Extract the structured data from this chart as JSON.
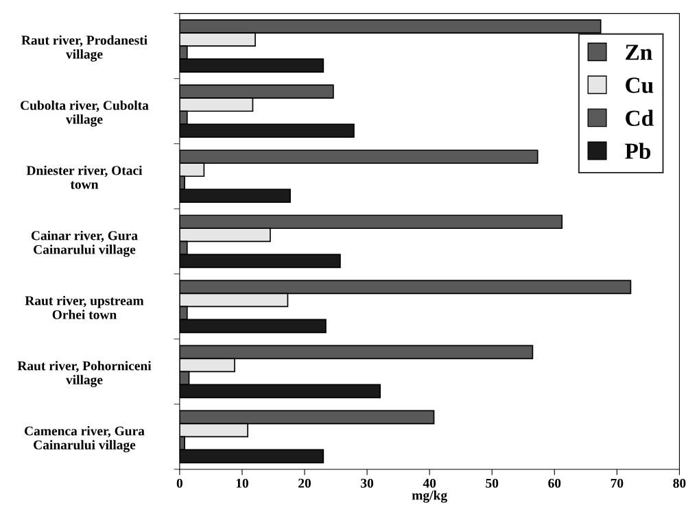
{
  "chart_data": {
    "type": "bar",
    "orientation": "horizontal",
    "xlabel": "mg/kg",
    "categories": [
      "Raut river, Prodanesti\nvillage",
      "Cubolta river, Cubolta\nvillage",
      "Dniester river, Otaci\ntown",
      "Cainar river, Gura\nCainarului village",
      "Raut river, upstream\nOrhei town",
      "Raut river, Pohorniceni\nvillage",
      "Camenca river, Gura\nCainarului village"
    ],
    "series": [
      {
        "name": "Zn",
        "color": "#595959",
        "values": [
          67.4,
          24.6,
          57.3,
          61.2,
          72.2,
          56.5,
          40.7
        ]
      },
      {
        "name": "Cu",
        "color": "#e6e6e6",
        "values": [
          12.1,
          11.7,
          3.9,
          14.5,
          17.3,
          8.8,
          10.9
        ]
      },
      {
        "name": "Cd",
        "color": "#595959",
        "values": [
          1.2,
          1.2,
          0.8,
          1.2,
          1.2,
          1.5,
          0.8
        ]
      },
      {
        "name": "Pb",
        "color": "#1a1a1a",
        "values": [
          23.0,
          27.9,
          17.7,
          25.7,
          23.4,
          32.1,
          23.0
        ]
      }
    ],
    "xlim": [
      0,
      80
    ],
    "xticks": [
      0,
      10,
      20,
      30,
      40,
      50,
      60,
      70,
      80
    ],
    "grid": false,
    "legend": "top right"
  }
}
